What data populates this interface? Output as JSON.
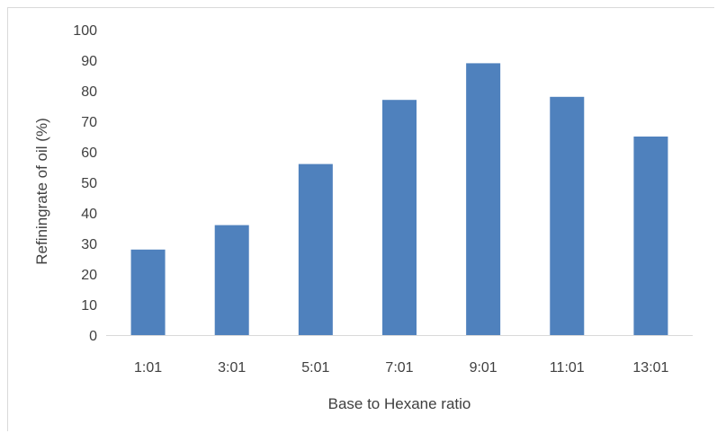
{
  "chart_data": {
    "type": "bar",
    "title": "",
    "xlabel": "Base to Hexane ratio",
    "ylabel": "Refiningrate of oil (%)",
    "categories": [
      "1:01",
      "3:01",
      "5:01",
      "7:01",
      "9:01",
      "11:01",
      "13:01"
    ],
    "values": [
      28,
      36,
      56,
      77,
      89,
      78,
      65
    ],
    "ylim": [
      0,
      100
    ],
    "yticks": [
      0,
      10,
      20,
      30,
      40,
      50,
      60,
      70,
      80,
      90,
      100
    ],
    "grid": false,
    "legend": "none",
    "bar_color": "#4f81bd",
    "axis_color": "#d9d9d9"
  }
}
